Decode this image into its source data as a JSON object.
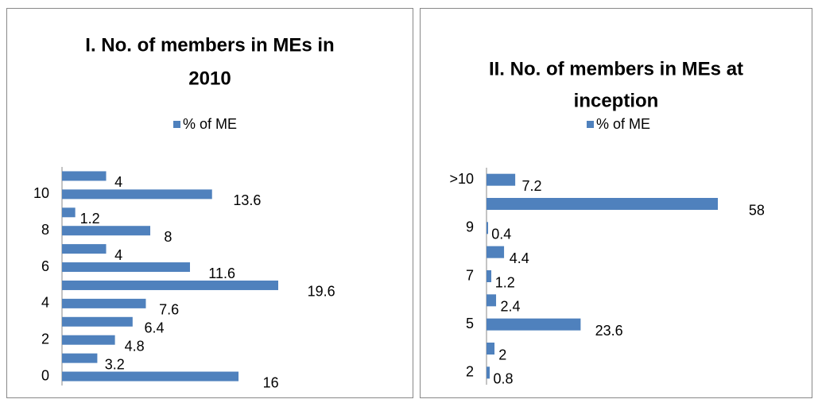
{
  "chart_data": [
    {
      "type": "bar",
      "orientation": "horizontal",
      "title": [
        "I. No. of members in MEs in",
        "2010"
      ],
      "categories": [
        "0",
        null,
        "2",
        null,
        "4",
        null,
        "6",
        null,
        "8",
        null,
        "10",
        null
      ],
      "series": [
        {
          "name": "% of ME",
          "color": "#4f81bd",
          "values": [
            16,
            3.2,
            4.8,
            6.4,
            7.6,
            19.6,
            11.6,
            4,
            8,
            1.2,
            13.6,
            4
          ]
        }
      ],
      "legend": "top"
    },
    {
      "type": "bar",
      "orientation": "horizontal",
      "title": [
        "II. No. of members in MEs at",
        "inception"
      ],
      "categories": [
        "2",
        null,
        "5",
        null,
        "7",
        null,
        "9",
        null,
        ">10"
      ],
      "series": [
        {
          "name": "% of ME",
          "color": "#4f81bd",
          "values": [
            0.8,
            2,
            23.6,
            2.4,
            1.2,
            4.4,
            0.4,
            58,
            7.2
          ]
        }
      ],
      "legend": "top"
    }
  ]
}
